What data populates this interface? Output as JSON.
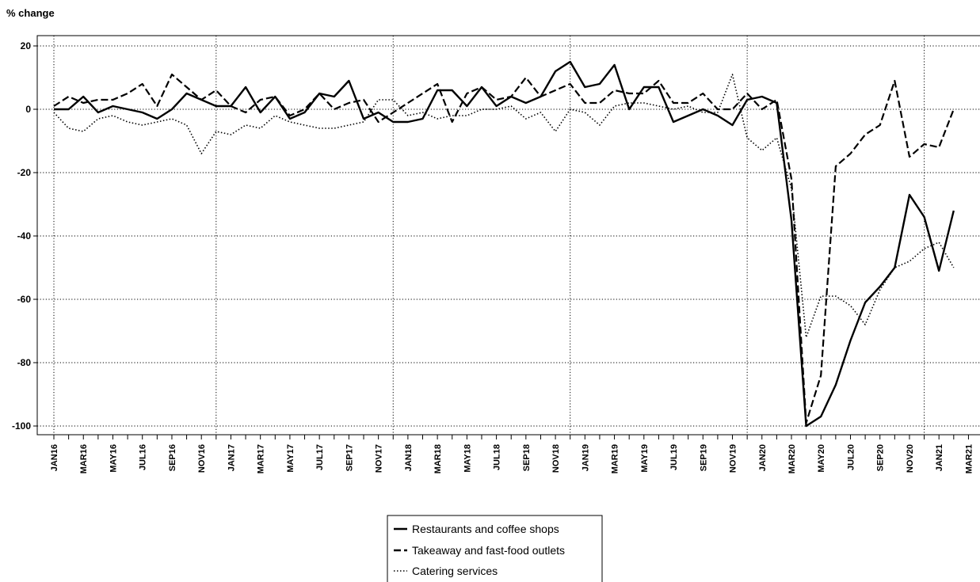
{
  "chart_data": {
    "type": "line",
    "title": "",
    "ylabel": "% change",
    "xlabel": "",
    "ylim": [
      -103,
      23
    ],
    "yticks": [
      20,
      0,
      -20,
      -40,
      -60,
      -80,
      -100
    ],
    "x": [
      "JAN16",
      "FEB16",
      "MAR16",
      "APR16",
      "MAY16",
      "JUN16",
      "JUL16",
      "AUG16",
      "SEP16",
      "OCT16",
      "NOV16",
      "DEC16",
      "JAN17",
      "FEB17",
      "MAR17",
      "APR17",
      "MAY17",
      "JUN17",
      "JUL17",
      "AUG17",
      "SEP17",
      "OCT17",
      "NOV17",
      "DEC17",
      "JAN18",
      "FEB18",
      "MAR18",
      "APR18",
      "MAY18",
      "JUN18",
      "JUL18",
      "AUG18",
      "SEP18",
      "OCT18",
      "NOV18",
      "DEC18",
      "JAN19",
      "FEB19",
      "MAR19",
      "APR19",
      "MAY19",
      "JUN19",
      "JUL19",
      "AUG19",
      "SEP19",
      "OCT19",
      "NOV19",
      "DEC19",
      "JAN20",
      "FEB20",
      "MAR20",
      "APR20",
      "MAY20",
      "JUN20",
      "JUL20",
      "AUG20",
      "SEP20",
      "OCT20",
      "NOV20",
      "DEC20",
      "JAN21",
      "FEB21",
      "MAR21"
    ],
    "xtick_labels": [
      "JAN16",
      "MAR16",
      "MAY16",
      "JUL16",
      "SEP16",
      "NOV16",
      "JAN17",
      "MAR17",
      "MAY17",
      "JUL17",
      "SEP17",
      "NOV17",
      "JAN18",
      "MAR18",
      "MAY18",
      "JUL18",
      "SEP18",
      "NOV18",
      "JAN19",
      "MAR19",
      "MAY19",
      "JUL19",
      "SEP19",
      "NOV19",
      "JAN20",
      "MAR20",
      "MAY20",
      "JUL20",
      "SEP20",
      "NOV20",
      "JAN21",
      "MAR21"
    ],
    "vertical_grid_at": [
      "JAN16",
      "DEC16",
      "DEC17",
      "DEC18",
      "DEC19",
      "DEC20"
    ],
    "grid": true,
    "legend_position": "bottom-center",
    "series": [
      {
        "name": "Restaurants and coffee shops",
        "style": "solid",
        "values": [
          0,
          0,
          4,
          -1,
          1,
          0,
          -1,
          -3,
          0,
          5,
          3,
          1,
          1,
          7,
          -1,
          4,
          -3,
          -1,
          5,
          4,
          9,
          -3,
          -1,
          -4,
          -4,
          -3,
          6,
          6,
          1,
          7,
          1,
          4,
          2,
          4,
          12,
          15,
          7,
          8,
          14,
          0,
          7,
          7,
          -4,
          -2,
          0,
          -2,
          -5,
          3,
          4,
          2,
          -35,
          -100,
          -97,
          -87,
          -73,
          -61,
          -56,
          -50,
          -27,
          -34,
          -51,
          -32,
          null
        ]
      },
      {
        "name": "Takeaway and fast-food outlets",
        "style": "dashed",
        "values": [
          1,
          4,
          2,
          3,
          3,
          5,
          8,
          1,
          11,
          7,
          3,
          6,
          1,
          -1,
          3,
          4,
          -2,
          0,
          5,
          0,
          2,
          3,
          -4,
          -1,
          2,
          5,
          8,
          -4,
          5,
          7,
          3,
          4,
          10,
          4,
          6,
          8,
          2,
          2,
          6,
          5,
          5,
          9,
          2,
          2,
          5,
          0,
          0,
          5,
          0,
          3,
          -22,
          -99,
          -84,
          -18,
          -14,
          -8,
          -5,
          9,
          -15,
          -11,
          -12,
          0,
          null
        ]
      },
      {
        "name": "Catering services",
        "style": "dotted",
        "values": [
          -1,
          -6,
          -7,
          -3,
          -2,
          -4,
          -5,
          -4,
          -3,
          -5,
          -14,
          -7,
          -8,
          -5,
          -6,
          -2,
          -4,
          -5,
          -6,
          -6,
          -5,
          -4,
          3,
          3,
          -2,
          -1,
          -3,
          -2,
          -2,
          0,
          0,
          1,
          -3,
          -1,
          -7,
          0,
          -1,
          -5,
          1,
          2,
          2,
          1,
          0,
          1,
          -1,
          -1,
          11,
          -9,
          -13,
          -9,
          -25,
          -72,
          -59,
          -59,
          -62,
          -68,
          -57,
          -50,
          -48,
          -44,
          -42,
          -50,
          null
        ]
      }
    ]
  }
}
